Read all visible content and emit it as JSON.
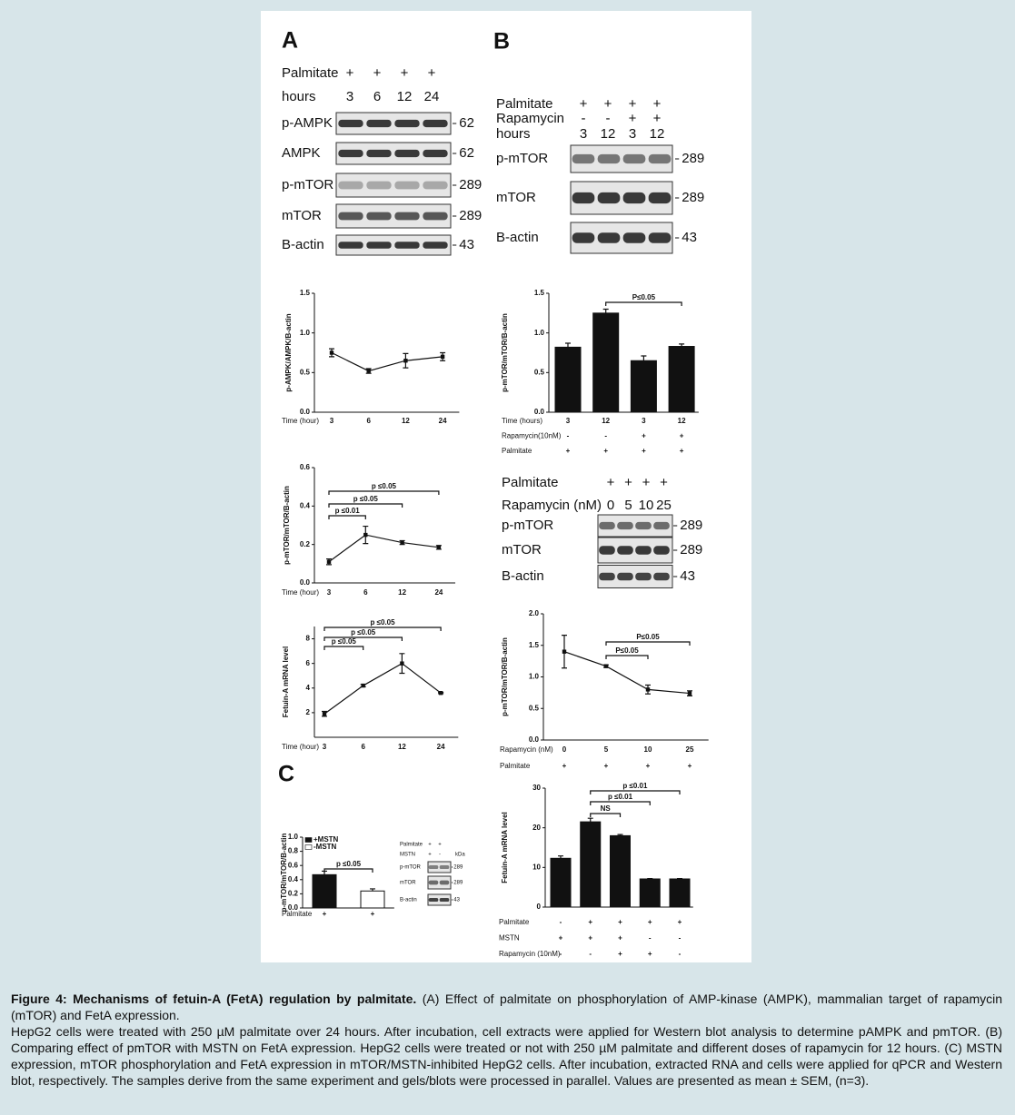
{
  "panels": [
    "A",
    "B",
    "C"
  ],
  "chart_data": [
    {
      "type": "line",
      "ylabel": "p-AMPK/AMPK/B-actin",
      "xlabel": "Time (hour)",
      "categories": [
        "3",
        "6",
        "12",
        "24"
      ],
      "rows": [],
      "series": [
        {
          "color": "#111111",
          "values": [
            0.75,
            0.52,
            0.65,
            0.7
          ],
          "errors": [
            0.05,
            0.03,
            0.09,
            0.05
          ]
        }
      ],
      "ylim": [
        0,
        1.5
      ],
      "yticks": [
        {
          "value": 0,
          "label": "0.0"
        },
        0.5,
        {
          "value": 1,
          "label": "1.0"
        },
        1.5
      ],
      "brackets": []
    },
    {
      "type": "line",
      "ylabel": "p-mTOR/mTOR/B-actin",
      "xlabel": "Time (hour)",
      "categories": [
        "3",
        "6",
        "12",
        "24"
      ],
      "rows": [],
      "series": [
        {
          "color": "#111111",
          "values": [
            0.11,
            0.25,
            0.21,
            0.185
          ],
          "errors": [
            0.015,
            0.045,
            0.01,
            0.01
          ]
        }
      ],
      "ylim": [
        0,
        0.6
      ],
      "yticks": [
        {
          "value": 0,
          "label": "0.0"
        },
        0.2,
        0.4,
        0.6
      ],
      "brackets": [
        {
          "from": 0,
          "to": 1,
          "label": "p ≤0.01"
        },
        {
          "from": 0,
          "to": 2,
          "label": "p ≤0.05"
        },
        {
          "from": 0,
          "to": 3,
          "label": "p ≤0.05"
        }
      ]
    },
    {
      "type": "line",
      "ylabel": "Fetuin-A mRNA level",
      "xlabel": "Time (hour)",
      "categories": [
        "3",
        "6",
        "12",
        "24"
      ],
      "rows": [],
      "series": [
        {
          "color": "#111111",
          "values": [
            1.9,
            4.2,
            6.0,
            3.6
          ],
          "errors": [
            0.2,
            0.1,
            0.8,
            0.05
          ]
        }
      ],
      "ylim": [
        0,
        9
      ],
      "yticks": [
        2,
        4,
        6,
        8
      ],
      "brackets": [
        {
          "from": 0,
          "to": 1,
          "label": "p ≤0.05"
        },
        {
          "from": 0,
          "to": 2,
          "label": "p ≤0.05"
        },
        {
          "from": 0,
          "to": 3,
          "label": "p ≤0.05"
        }
      ]
    },
    {
      "type": "bar",
      "ylabel": "p-mTOR/mTOR/B-actin",
      "xlabel": "Time (hours)",
      "categories": [
        "3",
        "12",
        "3",
        "12"
      ],
      "rows": [
        {
          "label": "Rapamycin(10nM)",
          "values": [
            "-",
            "-",
            "+",
            "+"
          ]
        },
        {
          "label": "Palmitate",
          "values": [
            "+",
            "+",
            "+",
            "+"
          ]
        }
      ],
      "series": [
        {
          "color": "#111111",
          "values": [
            0.82,
            1.25,
            0.65,
            0.83
          ],
          "errors": [
            0.05,
            0.05,
            0.06,
            0.03
          ]
        }
      ],
      "ylim": [
        0,
        1.5
      ],
      "yticks": [
        {
          "value": 0,
          "label": "0.0"
        },
        0.5,
        {
          "value": 1,
          "label": "1.0"
        },
        1.5
      ],
      "brackets": [
        {
          "from": 1,
          "to": 3,
          "label": "P≤0.05"
        }
      ]
    },
    {
      "type": "line",
      "ylabel": "p-mTOR/mTOR/B-actin",
      "xlabel": "Rapamycin (nM)",
      "categories": [
        "0",
        "5",
        "10",
        "25"
      ],
      "rows": [
        {
          "label": "Palmitate",
          "values": [
            "+",
            "+",
            "+",
            "+"
          ]
        }
      ],
      "series": [
        {
          "color": "#111111",
          "values": [
            1.4,
            1.17,
            0.8,
            0.74
          ],
          "errors": [
            0.26,
            0.02,
            0.07,
            0.04
          ]
        }
      ],
      "ylim": [
        0,
        2
      ],
      "yticks": [
        {
          "value": 0,
          "label": "0.0"
        },
        0.5,
        {
          "value": 1,
          "label": "1.0"
        },
        1.5,
        {
          "value": 2,
          "label": "2.0"
        }
      ],
      "brackets": [
        {
          "from": 1,
          "to": 3,
          "label": "P≤0.05"
        },
        {
          "from": 1,
          "to": 2,
          "label": "P≤0.05"
        }
      ]
    },
    {
      "type": "bar",
      "ylabel": "p-mTOR/mTOR/B-actin",
      "xlabel": "Palmitate",
      "categories": [
        "+",
        "+"
      ],
      "rows": [],
      "legend": "upper left",
      "series": [
        {
          "name": "+MSTN",
          "color": "#111111",
          "values": [
            0.47,
            null
          ],
          "errors": [
            0.05,
            null
          ]
        },
        {
          "name": "-MSTN",
          "color": "#ffffff",
          "values": [
            null,
            0.24
          ],
          "errors": [
            null,
            0.03
          ]
        }
      ],
      "ylim": [
        0,
        1
      ],
      "yticks": [
        {
          "value": 0,
          "label": "0.0"
        },
        0.2,
        0.4,
        0.6,
        0.8,
        {
          "value": 1,
          "label": "1.0"
        }
      ],
      "brackets": [
        {
          "from": 0,
          "to": 1,
          "label": "p ≤0.05"
        }
      ]
    },
    {
      "type": "bar",
      "ylabel": "Fetuin-A mRNA level",
      "xlabel": "Palmitate",
      "categories": [
        "-",
        "+",
        "+",
        "+",
        "+"
      ],
      "rows": [
        {
          "label": "MSTN",
          "values": [
            "+",
            "+",
            "+",
            "-",
            "-"
          ]
        },
        {
          "label": "Rapamycin (10nM)",
          "values": [
            "-",
            "-",
            "+",
            "+",
            "-"
          ]
        }
      ],
      "series": [
        {
          "color": "#111111",
          "values": [
            12.3,
            21.5,
            18,
            7.1,
            7.1
          ],
          "errors": [
            0.6,
            0.9,
            0.3,
            0.1,
            0.1
          ]
        }
      ],
      "ylim": [
        0,
        30
      ],
      "yticks": [
        0,
        10,
        20,
        30
      ],
      "brackets": [
        {
          "from": 1,
          "to": 2,
          "label": "NS"
        },
        {
          "from": 1,
          "to": 3,
          "label": "p ≤0.01"
        },
        {
          "from": 1,
          "to": 4,
          "label": "p ≤0.01"
        }
      ]
    }
  ],
  "blots": [
    {
      "header": [
        {
          "label": "Palmitate",
          "values": [
            "+",
            "+",
            "+",
            "+"
          ]
        },
        {
          "label": "hours",
          "values": [
            "3",
            "6",
            "12",
            "24"
          ]
        }
      ],
      "bands": [
        {
          "label": "p-AMPK",
          "kda": "62"
        },
        {
          "label": "AMPK",
          "kda": "62"
        },
        {
          "label": "p-mTOR",
          "kda": "289"
        },
        {
          "label": "mTOR",
          "kda": "289"
        },
        {
          "label": "B-actin",
          "kda": "43"
        }
      ]
    },
    {
      "header": [
        {
          "label": "Palmitate",
          "values": [
            "+",
            "+",
            "+",
            "+"
          ]
        },
        {
          "label": "Rapamycin",
          "values": [
            "-",
            "-",
            "+",
            "+"
          ]
        },
        {
          "label": "hours",
          "values": [
            "3",
            "12",
            "3",
            "12"
          ]
        }
      ],
      "bands": [
        {
          "label": "p-mTOR",
          "kda": "289"
        },
        {
          "label": "mTOR",
          "kda": "289"
        },
        {
          "label": "B-actin",
          "kda": "43"
        }
      ]
    },
    {
      "header": [
        {
          "label": "Palmitate",
          "values": [
            "+",
            "+",
            "+",
            "+"
          ]
        },
        {
          "label": "Rapamycin (nM)",
          "values": [
            "0",
            "5",
            "10",
            "25"
          ]
        }
      ],
      "bands": [
        {
          "label": "p-mTOR",
          "kda": "289"
        },
        {
          "label": "mTOR",
          "kda": "289"
        },
        {
          "label": "B-actin",
          "kda": "43"
        }
      ]
    },
    {
      "header": [
        {
          "label": "Palmitate",
          "values": [
            "+",
            "+"
          ]
        },
        {
          "label": "MSTN",
          "values": [
            "+",
            "-"
          ]
        }
      ],
      "kda_unit": "kDa",
      "bands": [
        {
          "label": "p-mTOR",
          "kda": "289"
        },
        {
          "label": "mTOR",
          "kda": "289"
        },
        {
          "label": "B-actin",
          "kda": "43"
        }
      ]
    }
  ],
  "caption": {
    "title": "Figure 4: Mechanisms of fetuin-A (FetA) regulation by palmitate.",
    "paragraphs": [
      "(A) Effect of palmitate on phosphorylation of AMP-kinase (AMPK), mammalian target of rapamycin (mTOR) and FetA expression.",
      "HepG2 cells were treated with 250 µM palmitate over 24 hours. After incubation, cell extracts were applied for Western blot analysis to determine pAMPK and pmTOR. (B) Comparing effect of pmTOR with MSTN on FetA expression. HepG2 cells were treated or not with 250 µM palmitate and different doses of rapamycin for 12 hours. (C) MSTN expression, mTOR phosphorylation and FetA expression in mTOR/MSTN-inhibited HepG2 cells. After incubation, extracted RNA and cells were applied for qPCR and Western blot, respectively. The samples derive from the same experiment and gels/blots were processed in parallel. Values are presented as mean ± SEM, (n=3)."
    ]
  }
}
